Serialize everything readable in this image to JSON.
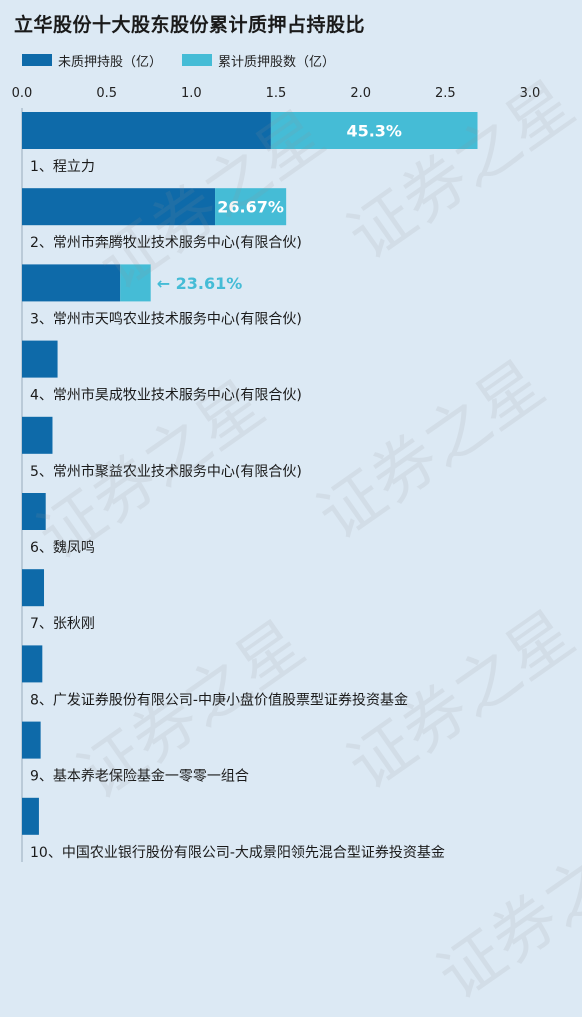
{
  "title": "立华股份十大股东股份累计质押占持股比",
  "legend": [
    {
      "label": "未质押持股（亿）",
      "color": "#0e6aa9"
    },
    {
      "label": "累计质押股数（亿）",
      "color": "#45bcd6"
    }
  ],
  "colors": {
    "unpledged": "#0e6aa9",
    "pledged": "#45bcd6",
    "pct_inside": "#ffffff",
    "pct_outside": "#45bcd6",
    "background": "#dce9f4"
  },
  "watermark": "证券之星",
  "chart_data": {
    "type": "bar",
    "orientation": "horizontal",
    "stacked": true,
    "xlim": [
      0,
      3.0
    ],
    "x_ticks": [
      "0.0",
      "0.5",
      "1.0",
      "1.5",
      "2.0",
      "2.5",
      "3.0"
    ],
    "categories": [
      "1、程立力",
      "2、常州市奔腾牧业技术服务中心(有限合伙)",
      "3、常州市天鸣农业技术服务中心(有限合伙)",
      "4、常州市昊成牧业技术服务中心(有限合伙)",
      "5、常州市聚益农业技术服务中心(有限合伙)",
      "6、魏凤鸣",
      "7、张秋刚",
      "8、广发证券股份有限公司-中庚小盘价值股票型证券投资基金",
      "9、基本养老保险基金一零零一组合",
      "10、中国农业银行股份有限公司-大成景阳领先混合型证券投资基金"
    ],
    "series": [
      {
        "name": "未质押持股（亿）",
        "values": [
          1.47,
          1.14,
          0.58,
          0.21,
          0.18,
          0.14,
          0.13,
          0.12,
          0.11,
          0.1
        ]
      },
      {
        "name": "累计质押股数（亿）",
        "values": [
          1.22,
          0.42,
          0.18,
          0,
          0,
          0,
          0,
          0,
          0,
          0
        ]
      }
    ],
    "pledge_pct_labels": [
      "45.3%",
      "26.67%",
      "← 23.61%",
      "",
      "",
      "",
      "",
      "",
      "",
      ""
    ]
  }
}
